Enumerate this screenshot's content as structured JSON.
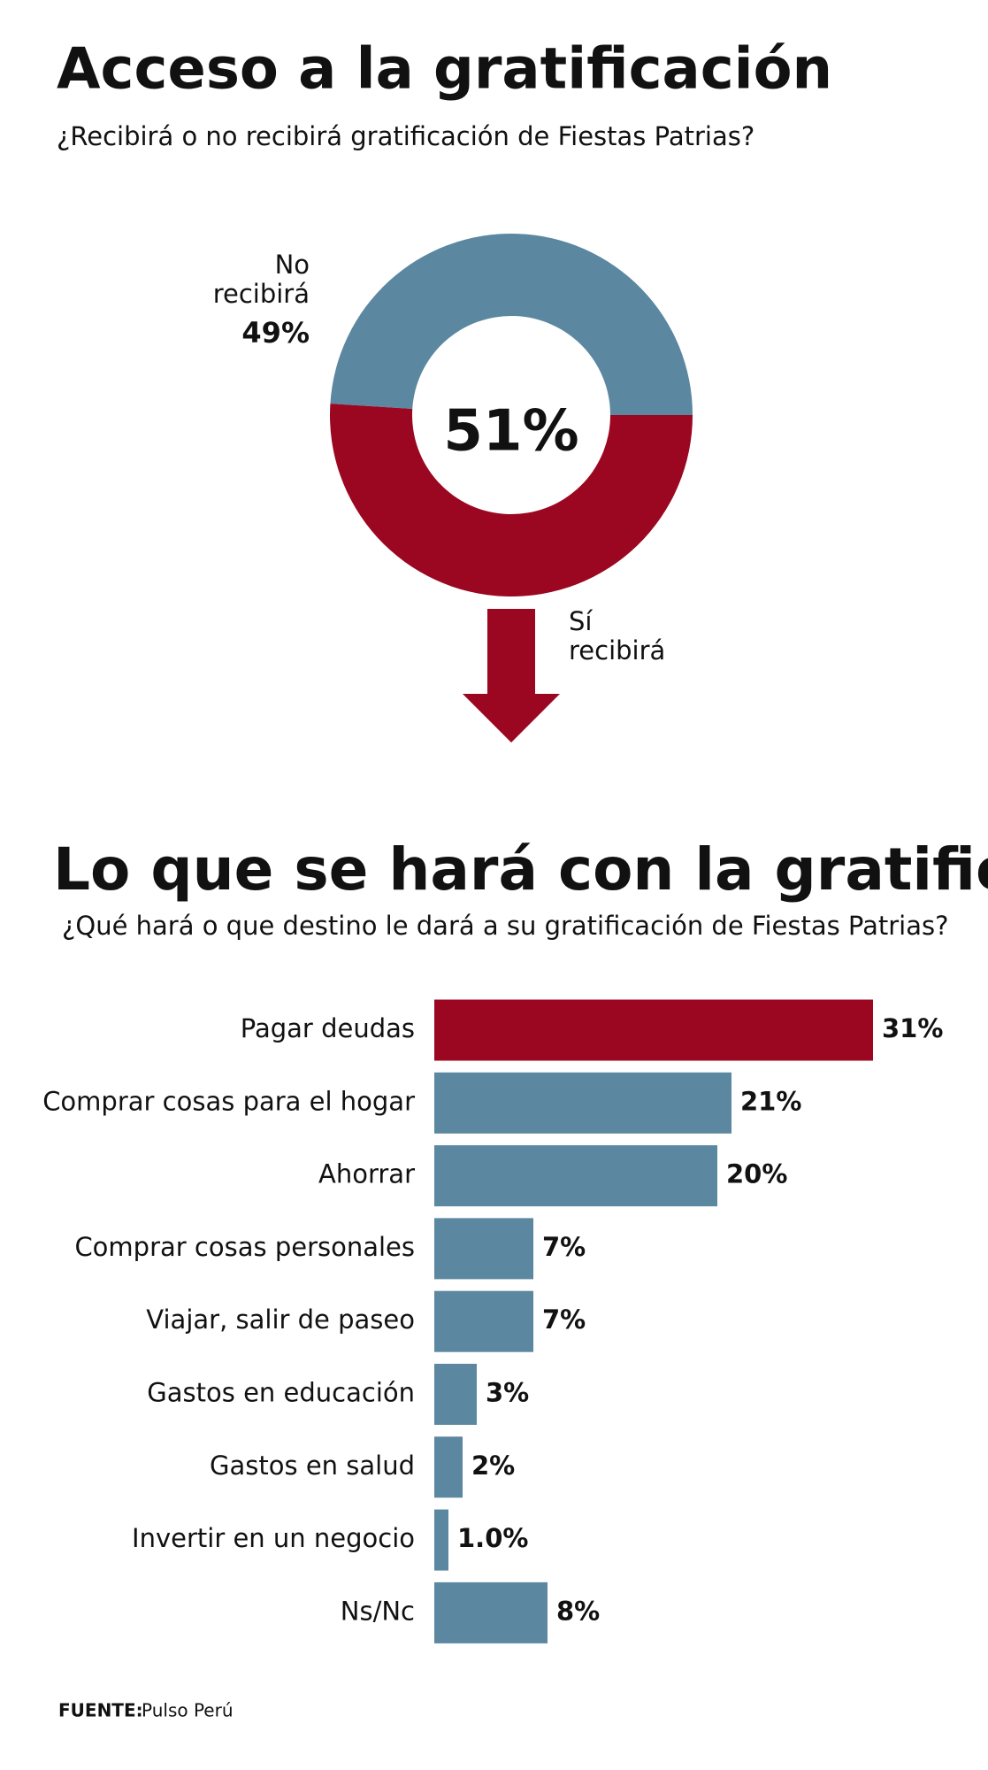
{
  "chart_data": [
    {
      "type": "pie",
      "title": "Acceso a la gratificación",
      "subtitle": "¿Recibirá o no recibirá gratificación de Fiestas Patrias?",
      "categories": [
        "No recibirá",
        "Sí recibirá"
      ],
      "values": [
        49,
        51
      ],
      "value_labels": [
        "49%",
        "51%"
      ],
      "colors": [
        "#5b87a0",
        "#9b0620"
      ]
    },
    {
      "type": "bar",
      "title": "Lo que se hará con la gratificación",
      "subtitle": "¿Qué hará o que destino le dará a su gratificación de Fiestas Patrias?",
      "categories": [
        "Pagar deudas",
        "Comprar cosas para el hogar",
        "Ahorrar",
        "Comprar cosas personales",
        "Viajar, salir de paseo",
        "Gastos en educación",
        "Gastos en salud",
        "Invertir en un negocio",
        "Ns/Nc"
      ],
      "values": [
        31,
        21,
        20,
        7,
        7,
        3,
        2,
        1.0,
        8
      ],
      "value_labels": [
        "31%",
        "21%",
        "20%",
        "7%",
        "7%",
        "3%",
        "2%",
        "1.0%",
        "8%"
      ],
      "colors": [
        "#9b0620",
        "#5b87a0",
        "#5b87a0",
        "#5b87a0",
        "#5b87a0",
        "#5b87a0",
        "#5b87a0",
        "#5b87a0",
        "#5b87a0"
      ]
    }
  ],
  "source": {
    "label": "FUENTE:",
    "text": "Pulso Perú"
  }
}
